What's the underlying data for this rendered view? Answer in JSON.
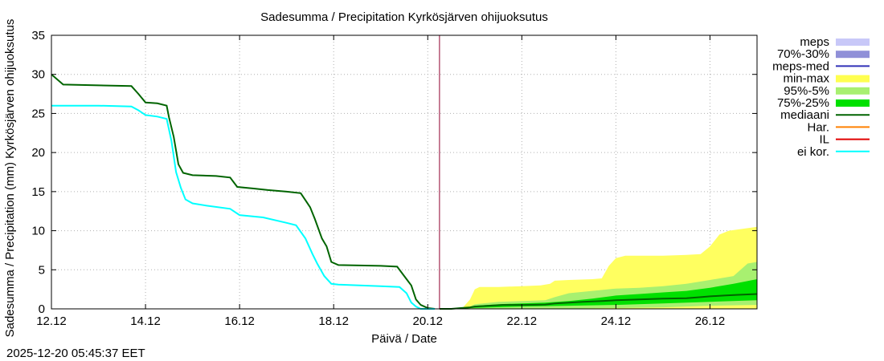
{
  "chart_data": {
    "type": "line",
    "title": "Sadesumma / Precipitation  Kyrkösjärven ohijuoksutus",
    "ylabel": "Sadesumma / Precipitation (mm)  Kyrkösjärven ohijuoksutus",
    "xlabel": "Päivä / Date",
    "timestamp": "2025-12-20 05:45:37 EET",
    "xlim": [
      12.0,
      27.0
    ],
    "ylim": [
      0,
      35
    ],
    "yticks": [
      0,
      5,
      10,
      15,
      20,
      25,
      30,
      35
    ],
    "xticks": [
      {
        "x": 12.0,
        "label": "12.12"
      },
      {
        "x": 14.0,
        "label": "14.12"
      },
      {
        "x": 16.0,
        "label": "16.12"
      },
      {
        "x": 18.0,
        "label": "18.12"
      },
      {
        "x": 20.0,
        "label": "20.12"
      },
      {
        "x": 22.0,
        "label": "22.12"
      },
      {
        "x": 24.0,
        "label": "24.12"
      },
      {
        "x": 26.0,
        "label": "26.12"
      }
    ],
    "grid": true,
    "now_marker_x": 20.25,
    "legend": [
      {
        "label": "meps",
        "color": "#c8c8f8",
        "style": "band"
      },
      {
        "label": "70%-30%",
        "color": "#9090d8",
        "style": "band"
      },
      {
        "label": "meps-med",
        "color": "#3030b8",
        "style": "line"
      },
      {
        "label": "min-max",
        "color": "#ffff50",
        "style": "band"
      },
      {
        "label": "95%-5%",
        "color": "#a8f070",
        "style": "band"
      },
      {
        "label": "75%-25%",
        "color": "#00e000",
        "style": "band"
      },
      {
        "label": "mediaani",
        "color": "#006400",
        "style": "line"
      },
      {
        "label": "Har.",
        "color": "#ff8000",
        "style": "line"
      },
      {
        "label": "IL",
        "color": "#e00000",
        "style": "line"
      },
      {
        "label": "ei kor.",
        "color": "#00ffff",
        "style": "line"
      }
    ],
    "series": [
      {
        "name": "mediaani (observed)",
        "color": "#006400",
        "points": [
          [
            12.0,
            30.0
          ],
          [
            12.25,
            28.7
          ],
          [
            13.0,
            28.6
          ],
          [
            13.7,
            28.5
          ],
          [
            13.85,
            27.5
          ],
          [
            14.0,
            26.4
          ],
          [
            14.25,
            26.3
          ],
          [
            14.45,
            26.0
          ],
          [
            14.5,
            24.5
          ],
          [
            14.6,
            22.0
          ],
          [
            14.7,
            18.5
          ],
          [
            14.8,
            17.4
          ],
          [
            15.0,
            17.1
          ],
          [
            15.5,
            17.0
          ],
          [
            15.8,
            16.8
          ],
          [
            15.95,
            15.6
          ],
          [
            16.3,
            15.4
          ],
          [
            16.6,
            15.2
          ],
          [
            17.0,
            15.0
          ],
          [
            17.3,
            14.8
          ],
          [
            17.5,
            13.0
          ],
          [
            17.6,
            11.5
          ],
          [
            17.75,
            9.0
          ],
          [
            17.85,
            8.0
          ],
          [
            17.95,
            6.0
          ],
          [
            18.1,
            5.6
          ],
          [
            19.0,
            5.5
          ],
          [
            19.35,
            5.4
          ],
          [
            19.5,
            4.2
          ],
          [
            19.65,
            3.0
          ],
          [
            19.75,
            1.2
          ],
          [
            19.85,
            0.5
          ],
          [
            20.0,
            0.1
          ],
          [
            20.15,
            0.0
          ]
        ]
      },
      {
        "name": "ei kor.",
        "color": "#00ffff",
        "points": [
          [
            12.0,
            26.0
          ],
          [
            13.0,
            26.0
          ],
          [
            13.7,
            25.9
          ],
          [
            13.85,
            25.4
          ],
          [
            14.0,
            24.8
          ],
          [
            14.25,
            24.6
          ],
          [
            14.45,
            24.3
          ],
          [
            14.55,
            21.5
          ],
          [
            14.65,
            17.5
          ],
          [
            14.75,
            15.5
          ],
          [
            14.85,
            14.0
          ],
          [
            15.0,
            13.5
          ],
          [
            15.3,
            13.2
          ],
          [
            15.8,
            12.8
          ],
          [
            16.0,
            12.0
          ],
          [
            16.5,
            11.7
          ],
          [
            17.0,
            11.0
          ],
          [
            17.2,
            10.7
          ],
          [
            17.4,
            9.0
          ],
          [
            17.55,
            7.0
          ],
          [
            17.65,
            5.8
          ],
          [
            17.8,
            4.2
          ],
          [
            17.95,
            3.2
          ],
          [
            18.1,
            3.1
          ],
          [
            19.0,
            2.9
          ],
          [
            19.4,
            2.8
          ],
          [
            19.55,
            2.0
          ],
          [
            19.65,
            0.8
          ],
          [
            19.75,
            0.3
          ],
          [
            19.85,
            0.0
          ],
          [
            20.15,
            0.0
          ]
        ]
      },
      {
        "name": "mediaani (forecast)",
        "color": "#006400",
        "points": [
          [
            20.25,
            0.0
          ],
          [
            20.5,
            0.0
          ],
          [
            20.7,
            0.1
          ],
          [
            20.9,
            0.2
          ],
          [
            21.0,
            0.3
          ],
          [
            21.3,
            0.4
          ],
          [
            21.6,
            0.5
          ],
          [
            22.0,
            0.5
          ],
          [
            22.5,
            0.55
          ],
          [
            22.7,
            0.7
          ],
          [
            23.0,
            0.8
          ],
          [
            23.3,
            0.9
          ],
          [
            23.7,
            1.0
          ],
          [
            24.0,
            1.1
          ],
          [
            24.5,
            1.2
          ],
          [
            25.0,
            1.3
          ],
          [
            25.5,
            1.35
          ],
          [
            25.8,
            1.5
          ],
          [
            26.0,
            1.6
          ],
          [
            26.3,
            1.7
          ],
          [
            26.6,
            1.8
          ],
          [
            27.0,
            1.9
          ]
        ]
      }
    ],
    "bands": [
      {
        "name": "min-max",
        "color": "#ffff60",
        "upper": [
          [
            20.25,
            0.0
          ],
          [
            20.6,
            0.0
          ],
          [
            20.75,
            0.2
          ],
          [
            20.9,
            1.2
          ],
          [
            21.0,
            2.5
          ],
          [
            21.1,
            2.8
          ],
          [
            21.5,
            2.8
          ],
          [
            22.0,
            2.9
          ],
          [
            22.4,
            3.0
          ],
          [
            22.6,
            3.2
          ],
          [
            22.7,
            3.6
          ],
          [
            23.0,
            3.7
          ],
          [
            23.5,
            3.8
          ],
          [
            23.7,
            3.9
          ],
          [
            23.85,
            5.5
          ],
          [
            24.0,
            6.5
          ],
          [
            24.2,
            6.8
          ],
          [
            25.0,
            6.8
          ],
          [
            25.5,
            6.9
          ],
          [
            25.8,
            7.0
          ],
          [
            26.0,
            8.0
          ],
          [
            26.2,
            9.5
          ],
          [
            26.4,
            10.0
          ],
          [
            27.0,
            10.5
          ]
        ],
        "lower": [
          [
            20.25,
            0.0
          ],
          [
            27.0,
            0.0
          ]
        ]
      },
      {
        "name": "95%-5%",
        "color": "#a8f070",
        "upper": [
          [
            20.25,
            0.0
          ],
          [
            20.7,
            0.0
          ],
          [
            20.9,
            0.3
          ],
          [
            21.0,
            0.6
          ],
          [
            21.5,
            0.9
          ],
          [
            22.0,
            1.0
          ],
          [
            22.5,
            1.1
          ],
          [
            22.7,
            1.5
          ],
          [
            23.0,
            2.0
          ],
          [
            23.5,
            2.3
          ],
          [
            24.0,
            2.6
          ],
          [
            24.5,
            2.7
          ],
          [
            25.0,
            2.9
          ],
          [
            25.5,
            3.2
          ],
          [
            26.0,
            3.7
          ],
          [
            26.5,
            4.2
          ],
          [
            26.8,
            5.8
          ],
          [
            27.0,
            6.0
          ]
        ],
        "lower": [
          [
            20.25,
            0.0
          ],
          [
            22.5,
            0.0
          ],
          [
            24.0,
            0.1
          ],
          [
            25.0,
            0.2
          ],
          [
            26.0,
            0.4
          ],
          [
            27.0,
            0.5
          ]
        ]
      },
      {
        "name": "75%-25%",
        "color": "#00e000",
        "upper": [
          [
            20.25,
            0.0
          ],
          [
            20.8,
            0.0
          ],
          [
            21.0,
            0.4
          ],
          [
            21.5,
            0.6
          ],
          [
            22.0,
            0.7
          ],
          [
            22.5,
            0.8
          ],
          [
            23.0,
            1.0
          ],
          [
            23.5,
            1.3
          ],
          [
            24.0,
            1.7
          ],
          [
            24.5,
            1.9
          ],
          [
            25.0,
            2.1
          ],
          [
            25.5,
            2.3
          ],
          [
            26.0,
            2.7
          ],
          [
            26.5,
            3.2
          ],
          [
            27.0,
            3.8
          ]
        ],
        "lower": [
          [
            20.25,
            0.0
          ],
          [
            22.0,
            0.3
          ],
          [
            23.0,
            0.4
          ],
          [
            24.0,
            0.5
          ],
          [
            25.0,
            0.7
          ],
          [
            26.0,
            0.9
          ],
          [
            27.0,
            1.1
          ]
        ]
      }
    ]
  }
}
